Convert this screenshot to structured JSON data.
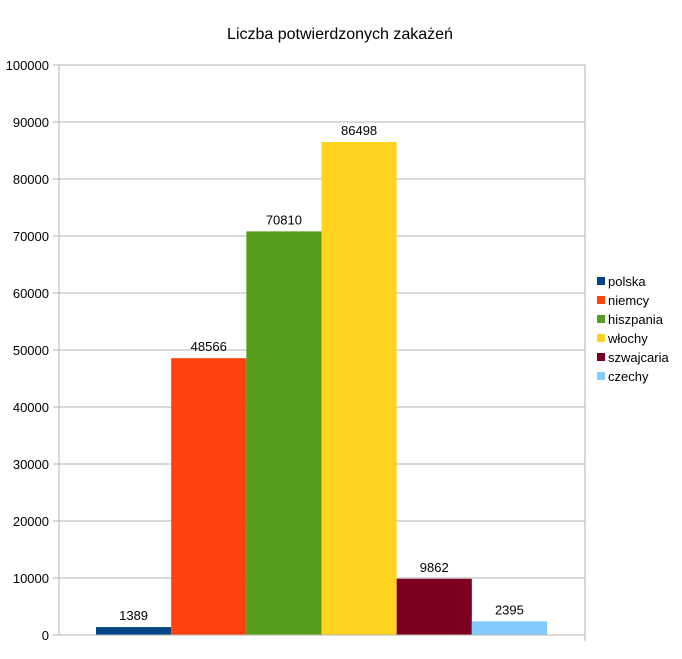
{
  "chart_data": {
    "type": "bar",
    "title": "Liczba potwierdzonych zakażeń",
    "ylim": [
      0,
      100000
    ],
    "yticks": [
      0,
      10000,
      20000,
      30000,
      40000,
      50000,
      60000,
      70000,
      80000,
      90000,
      100000
    ],
    "grid": true,
    "legend_position": "right",
    "series": [
      {
        "name": "polska",
        "value": 1389,
        "color": "#004586"
      },
      {
        "name": "niemcy",
        "value": 48566,
        "color": "#ff420e"
      },
      {
        "name": "hiszpania",
        "value": 70810,
        "color": "#579d1c"
      },
      {
        "name": "włochy",
        "value": 86498,
        "color": "#ffd320"
      },
      {
        "name": "szwajcaria",
        "value": 9862,
        "color": "#7e0021"
      },
      {
        "name": "czechy",
        "value": 2395,
        "color": "#83caff"
      }
    ]
  }
}
